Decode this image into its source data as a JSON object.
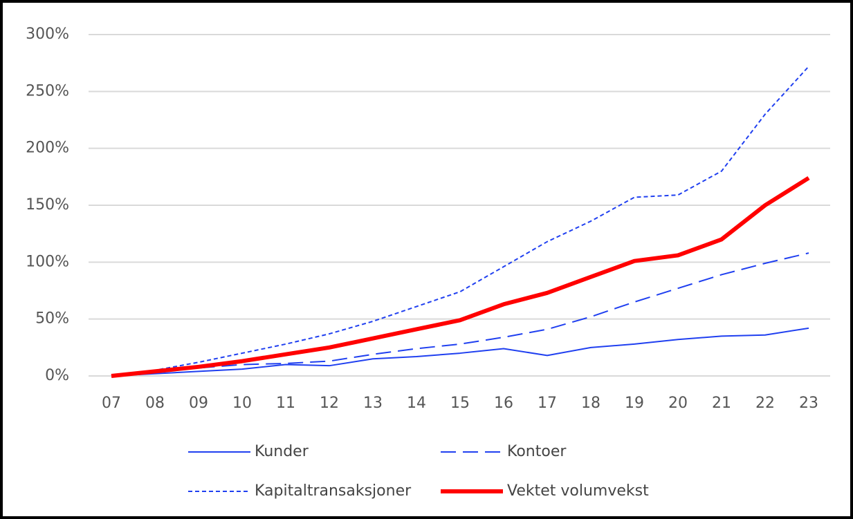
{
  "chart_data": {
    "type": "line",
    "categories": [
      "07",
      "08",
      "09",
      "10",
      "11",
      "12",
      "13",
      "14",
      "15",
      "16",
      "17",
      "18",
      "19",
      "20",
      "21",
      "22",
      "23"
    ],
    "series": [
      {
        "name": "Kunder",
        "color": "#1f3ff0",
        "dash": "solid",
        "width": 2,
        "values": [
          0,
          2,
          4,
          6,
          10,
          9,
          15,
          17,
          20,
          24,
          18,
          25,
          28,
          32,
          35,
          36,
          42
        ]
      },
      {
        "name": "Kontoer",
        "color": "#1f3ff0",
        "dash": "dashed",
        "width": 2,
        "values": [
          0,
          3,
          7,
          10,
          11,
          13,
          19,
          24,
          28,
          34,
          41,
          52,
          65,
          77,
          89,
          99,
          108
        ]
      },
      {
        "name": "Kapitaltransaksjoner",
        "color": "#1f3ff0",
        "dash": "dotted",
        "width": 2,
        "values": [
          0,
          5,
          12,
          20,
          28,
          37,
          48,
          61,
          74,
          96,
          118,
          136,
          157,
          159,
          180,
          230,
          272
        ]
      },
      {
        "name": "Vektet volumvekst",
        "color": "#ff0000",
        "dash": "solid",
        "width": 6,
        "values": [
          0,
          4,
          8,
          13,
          19,
          25,
          33,
          41,
          49,
          63,
          73,
          87,
          101,
          106,
          120,
          150,
          174
        ]
      }
    ],
    "ylim": [
      0,
      300
    ],
    "yticks": [
      {
        "value": 0,
        "label": "0%"
      },
      {
        "value": 50,
        "label": "50%"
      },
      {
        "value": 100,
        "label": "100%"
      },
      {
        "value": 150,
        "label": "150%"
      },
      {
        "value": 200,
        "label": "200%"
      },
      {
        "value": 250,
        "label": "250%"
      },
      {
        "value": 300,
        "label": "300%"
      }
    ],
    "grid": true,
    "legend": "bottom"
  }
}
